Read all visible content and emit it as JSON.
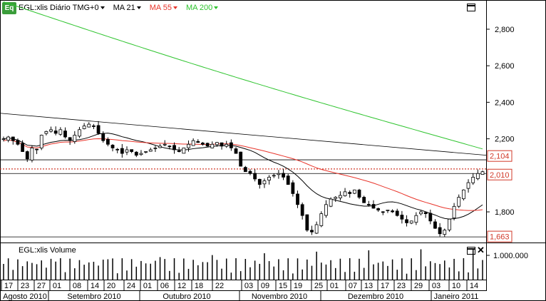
{
  "header": {
    "logo": "Eq",
    "symbol_label": "EGL:xlis Diário TMG+0",
    "ma21_label": "MA 21",
    "ma55_label": "MA 55",
    "ma200_label": "MA 200",
    "colors": {
      "ma21": "#000000",
      "ma55": "#e8352b",
      "ma200": "#2ec42e",
      "price_tag": "#d23a2a"
    }
  },
  "volume_panel": {
    "title": "EGL:xlis Volume",
    "axis_label": "1.000.000"
  },
  "x_axis": {
    "days": [
      "17",
      "23",
      "27",
      "01",
      "08",
      "14",
      "20",
      "24",
      "01",
      "06",
      "12",
      "18",
      "22",
      "03",
      "09",
      "15",
      "19",
      "25",
      "01",
      "07",
      "13",
      "17",
      "23",
      "29",
      "03",
      "10",
      "14"
    ],
    "months": [
      "Agosto 2010",
      "Setembro 2010",
      "Outubro 2010",
      "Novembro 2010",
      "Dezembro 2010",
      "Janeiro 2011"
    ]
  },
  "chart_data": {
    "type": "candlestick",
    "title": "EGL:xlis Diário TMG+0",
    "y_ticks": [
      "2,800",
      "2,600",
      "2,400",
      "2,200",
      "1,800"
    ],
    "ylim": [
      1.64,
      2.96
    ],
    "price_tags": [
      "2,104",
      "2,010",
      "1,663"
    ],
    "series_names": [
      "MA 21",
      "MA 55",
      "MA 200"
    ],
    "closes": [
      2.2,
      2.21,
      2.19,
      2.17,
      2.13,
      2.09,
      2.15,
      2.14,
      2.22,
      2.24,
      2.25,
      2.23,
      2.25,
      2.21,
      2.19,
      2.22,
      2.25,
      2.27,
      2.28,
      2.27,
      2.23,
      2.19,
      2.17,
      2.15,
      2.14,
      2.12,
      2.14,
      2.13,
      2.11,
      2.12,
      2.13,
      2.14,
      2.15,
      2.16,
      2.17,
      2.16,
      2.14,
      2.13,
      2.15,
      2.17,
      2.19,
      2.18,
      2.17,
      2.16,
      2.17,
      2.18,
      2.16,
      2.17,
      2.15,
      2.12,
      2.05,
      2.02,
      2.01,
      1.98,
      1.95,
      1.97,
      1.99,
      2.0,
      2.01,
      1.99,
      1.95,
      1.9,
      1.84,
      1.78,
      1.7,
      1.69,
      1.73,
      1.79,
      1.84,
      1.87,
      1.88,
      1.89,
      1.91,
      1.9,
      1.92,
      1.88,
      1.85,
      1.84,
      1.82,
      1.81,
      1.8,
      1.81,
      1.8,
      1.78,
      1.76,
      1.74,
      1.75,
      1.78,
      1.8,
      1.79,
      1.75,
      1.71,
      1.68,
      1.7,
      1.76,
      1.83,
      1.88,
      1.92,
      1.96,
      1.99,
      2.01,
      2.02
    ]
  }
}
